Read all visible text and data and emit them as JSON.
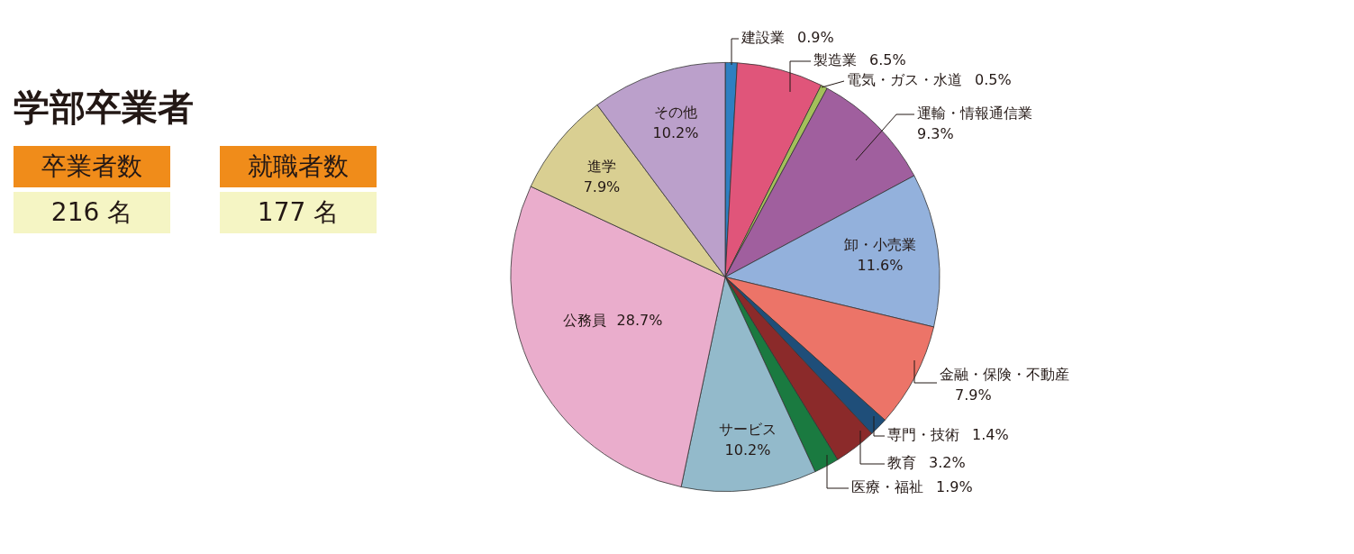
{
  "chart_data": [
    {
      "type": "other",
      "title": "学部卒業者",
      "annotations": [
        "卒業者数",
        "216 名",
        "就職者数",
        "177 名"
      ]
    },
    {
      "type": "pie",
      "categories": [
        "建設業",
        "製造業",
        "電気・ガス・水道",
        "運輸・情報通信業",
        "卸・小売業",
        "金融・保険・不動産",
        "専門・技術",
        "教育",
        "医療・福祉",
        "サービス",
        "公務員",
        "進学",
        "その他"
      ],
      "values": [
        0.9,
        6.5,
        0.5,
        9.3,
        11.6,
        7.9,
        1.4,
        3.2,
        1.9,
        10.2,
        28.7,
        7.9,
        10.2
      ],
      "value_labels": [
        "0.9%",
        "6.5%",
        "0.5%",
        "9.3%",
        "11.6%",
        "7.9%",
        "1.4%",
        "3.2%",
        "1.9%",
        "10.2%",
        "28.7%",
        "7.9%",
        "10.2%"
      ],
      "colors": [
        "#2e7fc1",
        "#e0557a",
        "#a3c05a",
        "#a05f9e",
        "#93b1dc",
        "#ec7468",
        "#1f4e79",
        "#8b2a2a",
        "#1a7a40",
        "#93bacb",
        "#eaadcc",
        "#d9cf92",
        "#bba0cb"
      ]
    }
  ]
}
